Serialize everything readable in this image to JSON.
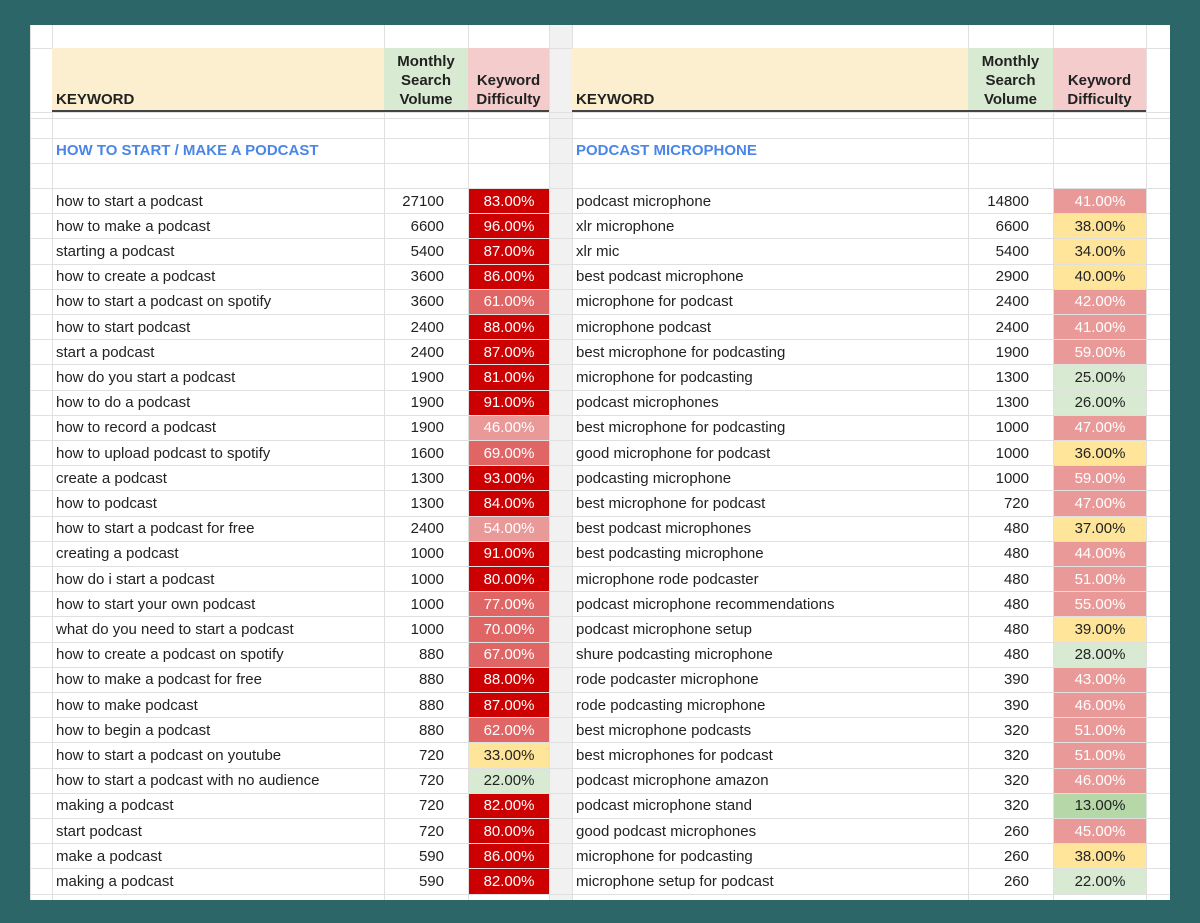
{
  "tables": [
    {
      "header": {
        "keyword": "KEYWORD",
        "volume": "Monthly Search Volume",
        "difficulty": "Keyword Difficulty"
      },
      "section": "HOW TO START / MAKE A PODCAST",
      "rows": [
        [
          "how to start a podcast",
          27100,
          "83.00%"
        ],
        [
          "how to make a podcast",
          6600,
          "96.00%"
        ],
        [
          "starting a podcast",
          5400,
          "87.00%"
        ],
        [
          "how to create a podcast",
          3600,
          "86.00%"
        ],
        [
          "how to start a podcast on spotify",
          3600,
          "61.00%"
        ],
        [
          "how to start podcast",
          2400,
          "88.00%"
        ],
        [
          "start a podcast",
          2400,
          "87.00%"
        ],
        [
          "how do you start a podcast",
          1900,
          "81.00%"
        ],
        [
          "how to do a podcast",
          1900,
          "91.00%"
        ],
        [
          "how to record a podcast",
          1900,
          "46.00%"
        ],
        [
          "how to upload podcast to spotify",
          1600,
          "69.00%"
        ],
        [
          "create a podcast",
          1300,
          "93.00%"
        ],
        [
          "how to podcast",
          1300,
          "84.00%"
        ],
        [
          "how to start a podcast for free",
          2400,
          "54.00%"
        ],
        [
          "creating a podcast",
          1000,
          "91.00%"
        ],
        [
          "how do i start a podcast",
          1000,
          "80.00%"
        ],
        [
          "how to start your own podcast",
          1000,
          "77.00%"
        ],
        [
          "what do you need to start a podcast",
          1000,
          "70.00%"
        ],
        [
          "how to create a podcast on spotify",
          880,
          "67.00%"
        ],
        [
          "how to make a podcast for free",
          880,
          "88.00%"
        ],
        [
          "how to make podcast",
          880,
          "87.00%"
        ],
        [
          "how to begin a podcast",
          880,
          "62.00%"
        ],
        [
          "how to start a podcast on youtube",
          720,
          "33.00%"
        ],
        [
          "how to start a podcast with no audience",
          720,
          "22.00%"
        ],
        [
          "making a podcast",
          720,
          "82.00%"
        ],
        [
          "start podcast",
          720,
          "80.00%"
        ],
        [
          "make a podcast",
          590,
          "86.00%"
        ],
        [
          "making a podcast",
          590,
          "82.00%"
        ]
      ]
    },
    {
      "header": {
        "keyword": "KEYWORD",
        "volume": "Monthly Search Volume",
        "difficulty": "Keyword Difficulty"
      },
      "section": "PODCAST MICROPHONE",
      "rows": [
        [
          "podcast microphone",
          14800,
          "41.00%"
        ],
        [
          "xlr microphone",
          6600,
          "38.00%"
        ],
        [
          "xlr mic",
          5400,
          "34.00%"
        ],
        [
          "best podcast microphone",
          2900,
          "40.00%"
        ],
        [
          "microphone for podcast",
          2400,
          "42.00%"
        ],
        [
          "microphone podcast",
          2400,
          "41.00%"
        ],
        [
          "best microphone for podcasting",
          1900,
          "59.00%"
        ],
        [
          "microphone for podcasting",
          1300,
          "25.00%"
        ],
        [
          "podcast microphones",
          1300,
          "26.00%"
        ],
        [
          "best microphone for podcasting",
          1000,
          "47.00%"
        ],
        [
          "good microphone for podcast",
          1000,
          "36.00%"
        ],
        [
          "podcasting microphone",
          1000,
          "59.00%"
        ],
        [
          "best microphone for podcast",
          720,
          "47.00%"
        ],
        [
          "best podcast microphones",
          480,
          "37.00%"
        ],
        [
          "best podcasting microphone",
          480,
          "44.00%"
        ],
        [
          "microphone rode podcaster",
          480,
          "51.00%"
        ],
        [
          "podcast microphone recommendations",
          480,
          "55.00%"
        ],
        [
          "podcast microphone setup",
          480,
          "39.00%"
        ],
        [
          "shure podcasting microphone",
          480,
          "28.00%"
        ],
        [
          "rode podcaster microphone",
          390,
          "43.00%"
        ],
        [
          "rode podcasting microphone",
          390,
          "46.00%"
        ],
        [
          "best microphone podcasts",
          320,
          "51.00%"
        ],
        [
          "best microphones for podcast",
          320,
          "51.00%"
        ],
        [
          "podcast microphone amazon",
          320,
          "46.00%"
        ],
        [
          "podcast microphone stand",
          320,
          "13.00%"
        ],
        [
          "good podcast microphones",
          260,
          "45.00%"
        ],
        [
          "microphone for podcasting",
          260,
          "38.00%"
        ],
        [
          "microphone setup for podcast",
          260,
          "22.00%"
        ]
      ]
    }
  ]
}
